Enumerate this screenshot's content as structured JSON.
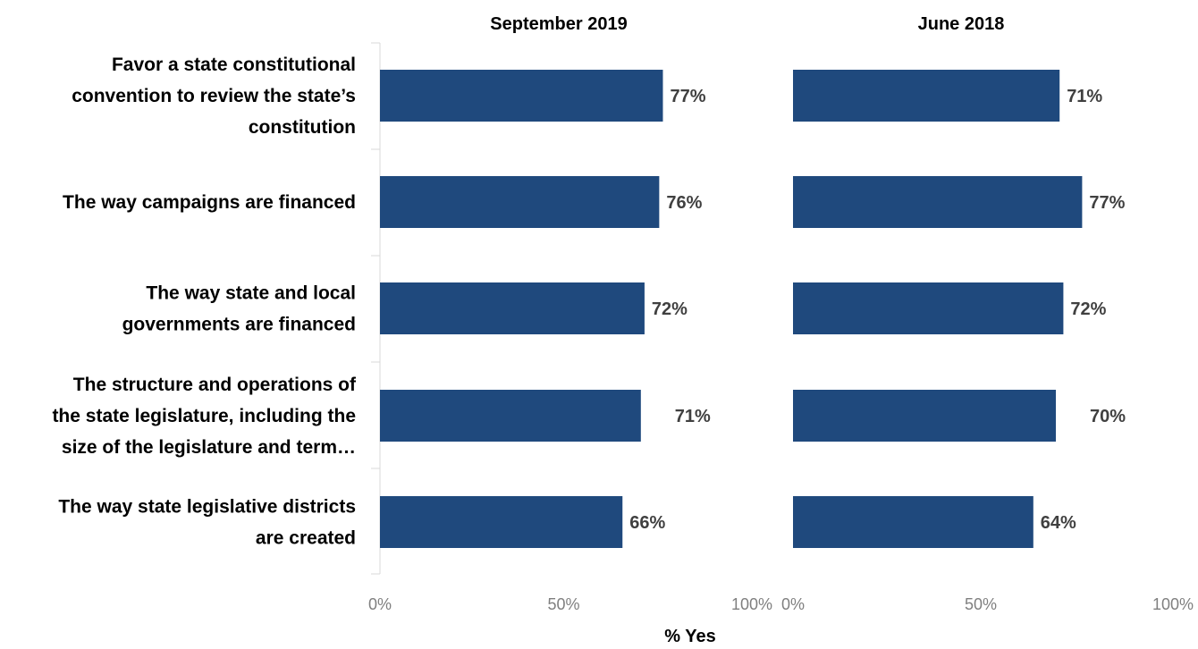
{
  "chart_data": {
    "type": "bar",
    "orientation": "horizontal",
    "xlabel": "% Yes",
    "xlim": [
      0,
      100
    ],
    "ticks": [
      "0%",
      "50%",
      "100%"
    ],
    "bar_color": "#1f497d",
    "categories": [
      "Favor a state constitutional convention to review the state’s constitution",
      "The way campaigns are financed",
      "The way state and local governments are financed",
      "The structure and operations of the state legislature, including the size of the legislature and term…",
      "The way state legislative districts are created"
    ],
    "category_lines": [
      [
        "Favor a state constitutional",
        "convention to review the state’s",
        "constitution"
      ],
      [
        "The way campaigns are financed"
      ],
      [
        "The way state and local",
        "governments are financed"
      ],
      [
        "The structure and operations of",
        "the state legislature, including the",
        "size of the legislature and term…"
      ],
      [
        "The way state legislative districts",
        "are created"
      ]
    ],
    "series": [
      {
        "name": "September 2019",
        "values": [
          77,
          76,
          72,
          71,
          66
        ],
        "labels": [
          "77%",
          "76%",
          "72%",
          "71%",
          "66%"
        ]
      },
      {
        "name": "June 2018",
        "values": [
          71,
          77,
          72,
          70,
          64
        ],
        "labels": [
          "71%",
          "77%",
          "72%",
          "70%",
          "64%"
        ]
      }
    ],
    "grid": false,
    "legend": "none"
  }
}
